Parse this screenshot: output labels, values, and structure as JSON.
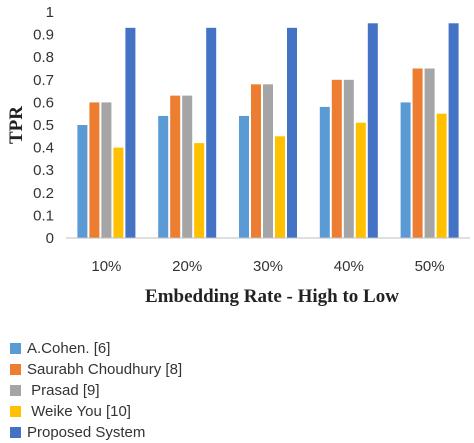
{
  "chart_data": {
    "type": "bar",
    "categories": [
      "10%",
      "20%",
      "30%",
      "40%",
      "50%"
    ],
    "series": [
      {
        "name": "A.Cohen. [6]",
        "color": "#5b9bd5",
        "values": [
          0.5,
          0.54,
          0.54,
          0.58,
          0.6
        ]
      },
      {
        "name": "Saurabh Choudhury [8]",
        "color": "#ed7d31",
        "values": [
          0.6,
          0.63,
          0.68,
          0.7,
          0.75
        ]
      },
      {
        "name": " Prasad [9]",
        "color": "#a5a5a5",
        "values": [
          0.6,
          0.63,
          0.68,
          0.7,
          0.75
        ]
      },
      {
        "name": " Weike You [10]",
        "color": "#ffc000",
        "values": [
          0.4,
          0.42,
          0.45,
          0.51,
          0.55
        ]
      },
      {
        "name": "Proposed System",
        "color": "#4472c4",
        "values": [
          0.93,
          0.93,
          0.93,
          0.95,
          0.95
        ]
      }
    ],
    "ylabel": "TPR",
    "xlabel": "Embedding Rate - High to Low",
    "ylim": [
      0,
      1
    ],
    "yticks": [
      "0",
      "0.1",
      "0.2",
      "0.3",
      "0.4",
      "0.5",
      "0.6",
      "0.7",
      "0.8",
      "0.9",
      "1"
    ],
    "grid": false,
    "legend": "bottom"
  }
}
